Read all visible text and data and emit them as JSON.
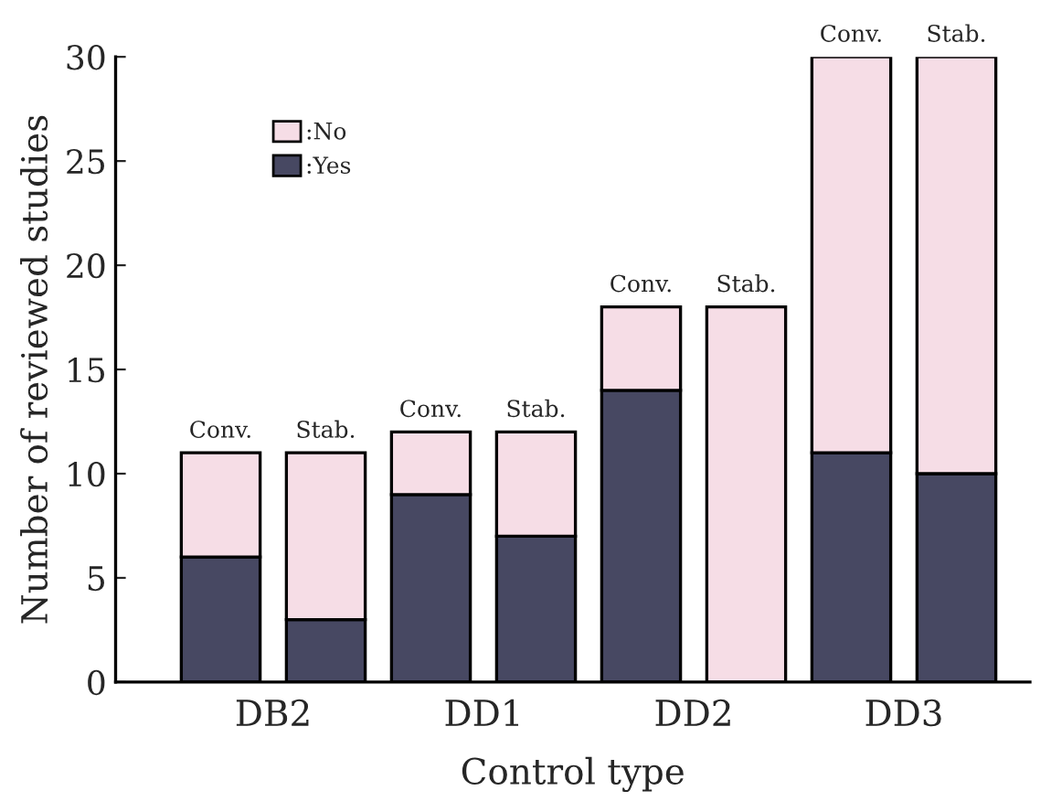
{
  "chart_data": {
    "type": "bar",
    "stacked": true,
    "xlabel": "Control type",
    "ylabel": "Number of reviewed studies",
    "categories": [
      null,
      null,
      null,
      null,
      null,
      null,
      null,
      null
    ],
    "series": [
      {
        "name": ":Yes",
        "color": "#474862",
        "values": [
          6,
          3,
          9,
          7,
          14,
          0,
          11,
          10
        ]
      },
      {
        "name": ":No",
        "color": "#f6dde6",
        "values": [
          5,
          8,
          3,
          5,
          4,
          18,
          19,
          20
        ]
      }
    ],
    "annotations": [
      {
        "text": "Conv.",
        "y": 11
      },
      {
        "text": "Stab.",
        "y": 11
      },
      {
        "text": "Conv.",
        "y": 12
      },
      {
        "text": "Stab.",
        "y": 12
      },
      {
        "text": "Conv.",
        "y": 18
      },
      {
        "text": "Stab.",
        "y": 18
      },
      {
        "text": "Conv.",
        "y": 30
      },
      {
        "text": "Stab.",
        "y": 30
      },
      "DB2",
      "DD1",
      "DD2",
      "DD3"
    ],
    "ylim": [
      0,
      30
    ],
    "yticks": [
      0,
      5,
      10,
      15,
      20,
      25,
      30
    ],
    "grid": false,
    "legend": "top left"
  }
}
